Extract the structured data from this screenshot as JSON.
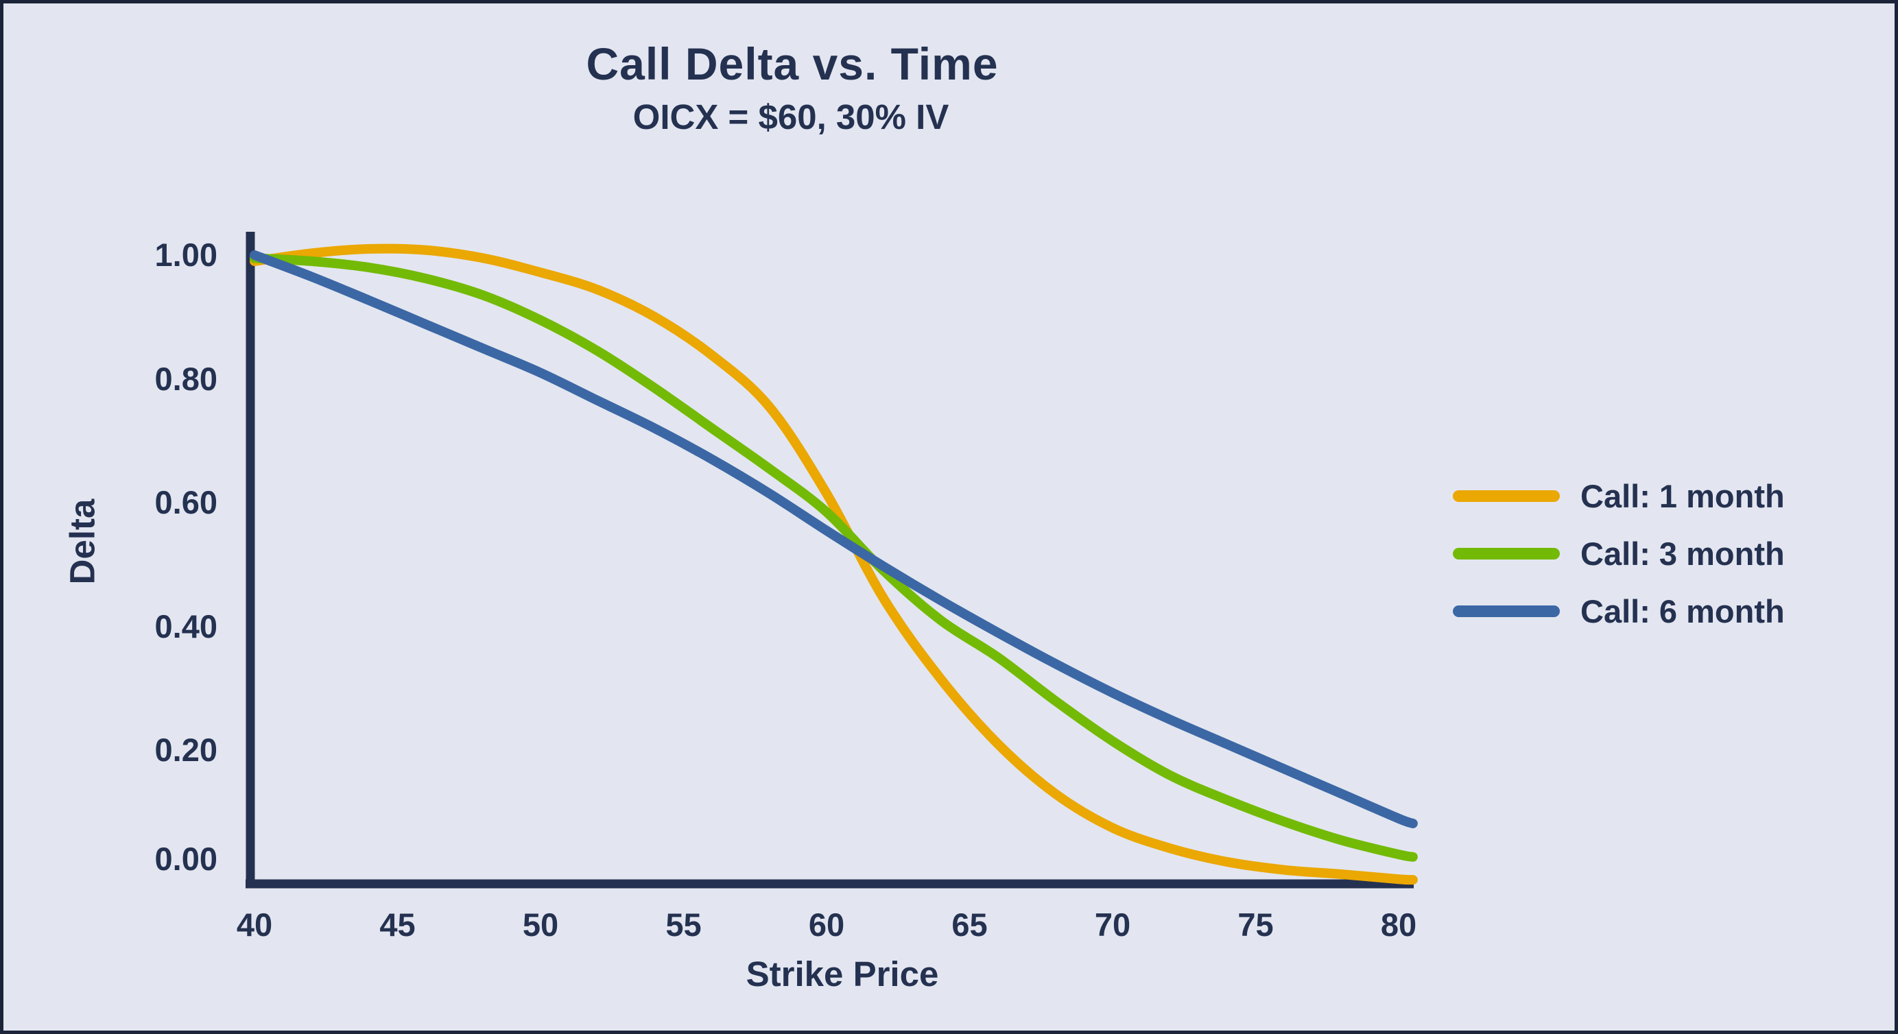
{
  "frame": {
    "background": "#e3e6f0",
    "border_color": "#1b2438"
  },
  "header": {
    "title": "Call Delta vs. Time",
    "subtitle": "OICX = $60, 30% IV"
  },
  "axes": {
    "x_label": "Strike Price",
    "y_label": "Delta",
    "x_ticks": [
      "40",
      "45",
      "50",
      "55",
      "60",
      "65",
      "70",
      "75",
      "80"
    ],
    "y_ticks": [
      "1.00",
      "0.80",
      "0.60",
      "0.40",
      "0.20",
      "0.00"
    ],
    "color": "#243150"
  },
  "legend": {
    "items": [
      {
        "label": "Call: 1 month",
        "color": "#ebа702"
      },
      {
        "label": "Call: 3 month",
        "color": "#73ba06"
      },
      {
        "label": "Call: 6 month",
        "color": "#3c67a5"
      }
    ]
  },
  "chart_data": {
    "type": "line",
    "title": "Call Delta vs. Time",
    "subtitle": "OICX = $60, 30% IV",
    "xlabel": "Strike Price",
    "ylabel": "Delta",
    "xlim": [
      40,
      80.5
    ],
    "ylim": [
      0,
      1.0
    ],
    "x_ticks": [
      40,
      45,
      50,
      55,
      60,
      65,
      70,
      75,
      80
    ],
    "y_ticks": [
      0.0,
      0.2,
      0.4,
      0.6,
      0.8,
      1.0
    ],
    "grid": false,
    "legend_position": "center-right",
    "underlying_price": 60,
    "implied_volatility_pct": 30,
    "x": [
      40,
      42,
      44,
      46,
      48,
      50,
      52,
      54,
      56,
      58,
      60,
      62,
      64,
      66,
      68,
      70,
      72,
      74,
      76,
      78,
      80,
      80.5
    ],
    "series": [
      {
        "name": "Call: 1 month",
        "color": "#eba702",
        "values": [
          0.99,
          1.003,
          1.01,
          1.008,
          0.995,
          0.972,
          0.944,
          0.9,
          0.838,
          0.755,
          0.615,
          0.445,
          0.315,
          0.21,
          0.13,
          0.075,
          0.042,
          0.02,
          0.007,
          0.0,
          -0.008,
          -0.009
        ]
      },
      {
        "name": "Call: 3 month",
        "color": "#73ba06",
        "values": [
          0.995,
          0.99,
          0.98,
          0.962,
          0.935,
          0.895,
          0.845,
          0.785,
          0.72,
          0.655,
          0.585,
          0.49,
          0.41,
          0.35,
          0.28,
          0.215,
          0.16,
          0.12,
          0.085,
          0.055,
          0.032,
          0.028
        ]
      },
      {
        "name": "Call: 6 month",
        "color": "#3c67a5",
        "values": [
          1.0,
          0.965,
          0.927,
          0.888,
          0.849,
          0.81,
          0.765,
          0.72,
          0.67,
          0.615,
          0.555,
          0.497,
          0.442,
          0.39,
          0.34,
          0.293,
          0.25,
          0.21,
          0.17,
          0.13,
          0.09,
          0.082
        ]
      }
    ]
  }
}
